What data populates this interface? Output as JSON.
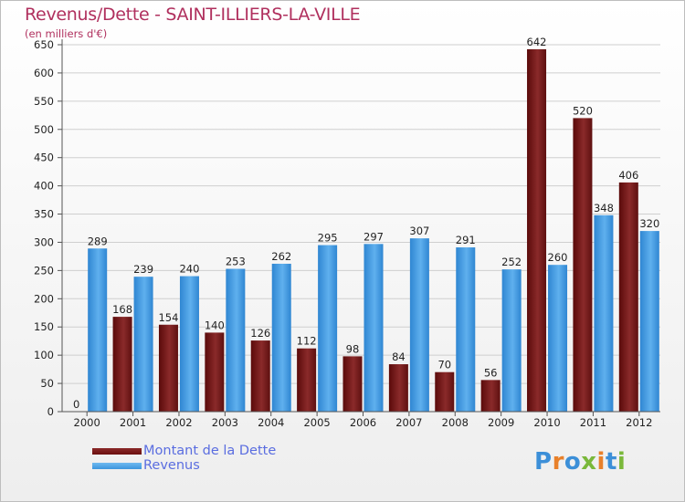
{
  "header": {
    "title": "Revenus/Dette - SAINT-ILLIERS-LA-VILLE",
    "subtitle": "(en milliers d'€)"
  },
  "chart_data": {
    "type": "bar",
    "title": "Revenus/Dette - SAINT-ILLIERS-LA-VILLE",
    "subtitle": "(en milliers d'€)",
    "xlabel": "",
    "ylabel": "",
    "categories": [
      "2000",
      "2001",
      "2002",
      "2003",
      "2004",
      "2005",
      "2006",
      "2007",
      "2008",
      "2009",
      "2010",
      "2011",
      "2012"
    ],
    "series": [
      {
        "name": "Montant de la Dette",
        "color": "#7a1c1c",
        "values": [
          0,
          168,
          154,
          140,
          126,
          112,
          98,
          84,
          70,
          56,
          642,
          520,
          406
        ]
      },
      {
        "name": "Revenus",
        "color": "#3c95dd",
        "values": [
          289,
          239,
          240,
          253,
          262,
          295,
          297,
          307,
          291,
          252,
          260,
          348,
          320
        ]
      }
    ],
    "ylim": [
      0,
      650
    ],
    "yticks": [
      0,
      50,
      100,
      150,
      200,
      250,
      300,
      350,
      400,
      450,
      500,
      550,
      600,
      650
    ],
    "grid": true,
    "legend_position": "bottom-left"
  },
  "legend": {
    "items": [
      {
        "label": "Montant de la Dette",
        "color": "#6b0f0f"
      },
      {
        "label": "Revenus",
        "color": "#3c95dd"
      }
    ]
  },
  "logo": {
    "text": "Proxiti",
    "colors": [
      "#3c8fd8",
      "#e8802a",
      "#3c8fd8",
      "#7ab83a",
      "#e8802a",
      "#3c8fd8",
      "#7ab83a"
    ]
  }
}
